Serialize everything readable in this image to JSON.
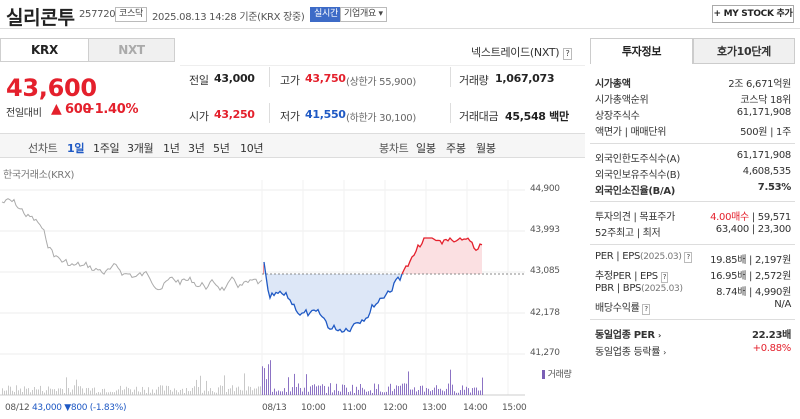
{
  "header": {
    "name": "실리콘투",
    "code": "257720",
    "market_tag": "코스닥",
    "datetime": "2025.08.13 14:28 기준(KRX 장중)",
    "realtime_tag": "실시간",
    "company_tag": "기업개요",
    "my_stock_label": "+ MY STOCK 추가"
  },
  "exchange_tabs": [
    "KRX",
    "NXT"
  ],
  "nxt_link": "넥스트레이드(NXT)",
  "help_icon": "?",
  "price": {
    "current": "43,600",
    "change_label": "전일대비",
    "change_arrow": "▲",
    "change": "600",
    "change_pct": "+1.40%"
  },
  "quote": {
    "prev_label": "전일",
    "prev": "43,000",
    "high_label": "고가",
    "high": "43,750",
    "upper_limit": "(상한가 55,900)",
    "volume_label": "거래량",
    "volume": "1,067,073",
    "open_label": "시가",
    "open": "43,250",
    "low_label": "저가",
    "low": "41,550",
    "lower_limit": "(하한가 30,100)",
    "amount_label": "거래대금",
    "amount": "45,548 백만"
  },
  "periods": {
    "line_label": "선차트",
    "items": [
      "1일",
      "1주일",
      "3개월",
      "1년",
      "3년",
      "5년",
      "10년"
    ],
    "selected": "1일",
    "candle_label": "봉차트",
    "candle_items": [
      "일봉",
      "주봉",
      "월봉"
    ]
  },
  "chart": {
    "source": "한국거래소(KRX)",
    "y_ticks": [
      "44,900",
      "43,993",
      "43,085",
      "42,178",
      "41,270"
    ],
    "x_ticks": [
      "08/13",
      "10:00",
      "11:00",
      "12:00",
      "13:00",
      "14:00",
      "15:00"
    ],
    "volume_label": "거래량",
    "prev_day_label": "08/12",
    "prev_day_summary_price": "43,000",
    "prev_day_summary_change": "▼800 (-1.83%)",
    "colors": {
      "up": "#e4202c",
      "down": "#1f59c4",
      "prev": "#aaaaaa",
      "up_fill": "#fbe0e2",
      "down_fill": "#dde7f7"
    }
  },
  "side": {
    "tabs": [
      "투자정보",
      "호가10단계"
    ],
    "rows1": [
      {
        "label": "시가총액",
        "value": "2조 6,671억원"
      },
      {
        "label": "시가총액순위",
        "value": "코스닥 18위"
      },
      {
        "label": "상장주식수",
        "value": "61,171,908"
      },
      {
        "label": "액면가 | 매매단위",
        "value": "500원 | 1주"
      }
    ],
    "rows2": [
      {
        "label": "외국인한도주식수(A)",
        "value": "61,171,908"
      },
      {
        "label": "외국인보유주식수(B)",
        "value": "4,608,535"
      },
      {
        "label": "외국인소진율(B/A)",
        "value": "7.53%"
      }
    ],
    "opinion_label": "투자의견 | 목표주가",
    "opinion_value": "4.00매수",
    "target_value": "| 59,571",
    "w52_label": "52주최고 | 최저",
    "w52_value": "63,400 | 23,300",
    "per_rows": [
      {
        "label": "PER | EPS",
        "sub": "(2025.03)",
        "value": "19.85배 | 2,197원"
      },
      {
        "label": "추정PER | EPS",
        "sub": "",
        "value": "16.95배 | 2,572원"
      },
      {
        "label": "PBR | BPS",
        "sub": "(2025.03)",
        "value": "8.74배 | 4,990원"
      },
      {
        "label": "배당수익률",
        "sub": "",
        "value": "N/A"
      }
    ],
    "industry_per_label": "동일업종 PER",
    "industry_per_value": "22.23배",
    "industry_rate_label": "동일업종 등락률",
    "industry_rate_value": "+0.88%"
  }
}
